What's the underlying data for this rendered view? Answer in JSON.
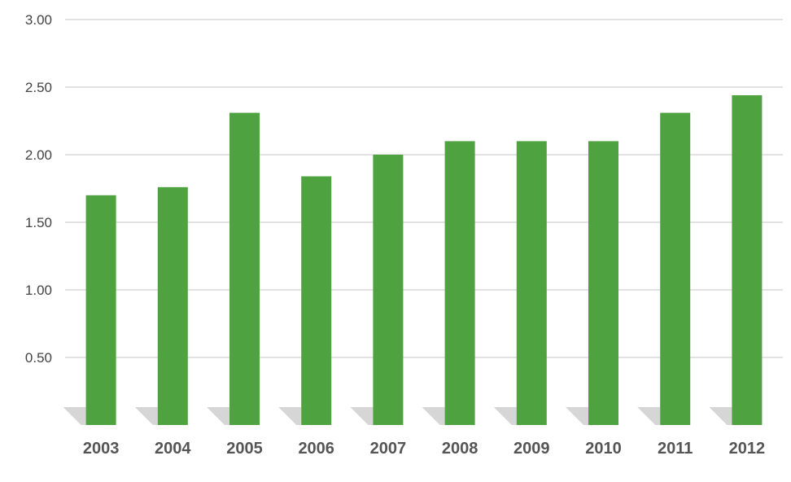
{
  "chart_data": {
    "type": "bar",
    "categories": [
      "2003",
      "2004",
      "2005",
      "2006",
      "2007",
      "2008",
      "2009",
      "2010",
      "2011",
      "2012"
    ],
    "values": [
      1.7,
      1.76,
      2.31,
      1.84,
      2.0,
      2.1,
      2.1,
      2.1,
      2.31,
      2.44
    ],
    "y_ticks": [
      "0.50",
      "1.00",
      "1.50",
      "2.00",
      "2.50",
      "3.00"
    ],
    "ylim": [
      0,
      3.0
    ],
    "title": "",
    "xlabel": "",
    "ylabel": "",
    "grid": true,
    "bar_color": "#4ea23f",
    "grid_color": "#d9d9d9",
    "shadow_color": "#c8c8c8"
  }
}
